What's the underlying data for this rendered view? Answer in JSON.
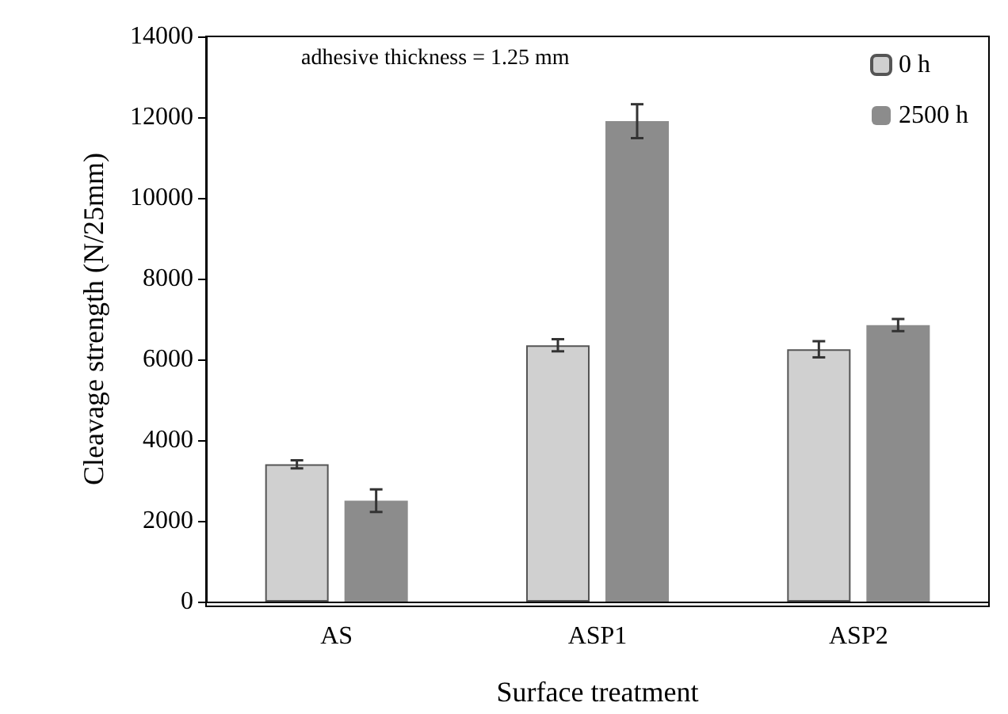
{
  "chart_data": {
    "type": "bar",
    "xlabel": "Surface treatment",
    "ylabel": "Cleavage strength (N/25mm)",
    "annotations": [
      "adhesive thickness = 1.25 mm"
    ],
    "categories": [
      "AS",
      "ASP1",
      "ASP2"
    ],
    "series": [
      {
        "name": "0 h",
        "color": "#d0d0d0",
        "values": [
          3400,
          6350,
          6250
        ],
        "errors": [
          100,
          150,
          200
        ]
      },
      {
        "name": "2500 h",
        "color": "#8c8c8c",
        "values": [
          2500,
          11900,
          6850
        ],
        "errors": [
          280,
          420,
          150
        ]
      }
    ],
    "ylim": [
      0,
      14000
    ],
    "yticks": [
      0,
      2000,
      4000,
      6000,
      8000,
      10000,
      12000,
      14000
    ],
    "grid": false,
    "legend": "top right"
  }
}
